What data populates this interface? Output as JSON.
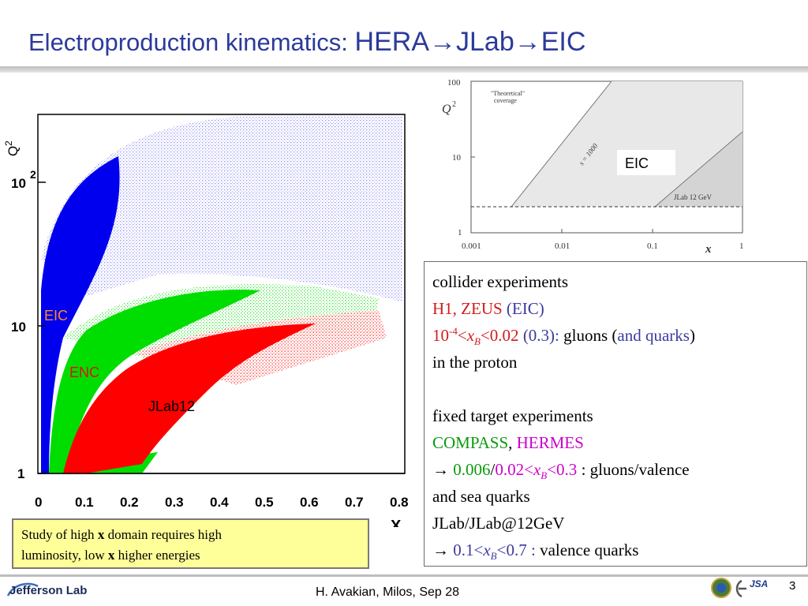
{
  "title": {
    "prefix": "Electroproduction kinematics: ",
    "main": "HERA→JLab→EIC"
  },
  "left_plot": {
    "y_axis_label": "Q",
    "y_axis_exp": "2",
    "x_axis_label": "X",
    "y_ticks": [
      {
        "base": "1",
        "exp": ""
      },
      {
        "base": "10",
        "exp": ""
      },
      {
        "base": "10",
        "exp": "2"
      }
    ],
    "x_ticks": [
      "0",
      "0.1",
      "0.2",
      "0.3",
      "0.4",
      "0.5",
      "0.6",
      "0.7",
      "0.8"
    ],
    "region_labels": {
      "eic": "EIC",
      "enc": "ENC",
      "jlab12": "JLab12"
    },
    "colors": {
      "eic": "#0000ee",
      "enc": "#00dd00",
      "jlab12": "#ff0000"
    }
  },
  "right_plot": {
    "y_label": "Q",
    "y_label_exp": "2",
    "x_label": "x",
    "y_ticks": [
      "100",
      "10",
      "1"
    ],
    "x_ticks": [
      "0.001",
      "0.01",
      "0.1",
      "1"
    ],
    "theory_label_1": "\"Theoretical\"",
    "theory_label_2": "coverage",
    "s_label": "s = 1000",
    "eic_label": "EIC",
    "jlab_label": "JLab 12 GeV"
  },
  "textbox": {
    "l1": "collider experiments",
    "l2_red": "H1, ZEUS ",
    "l2_blue": "(EIC)",
    "l3_a": "10",
    "l3_a_exp": "-4",
    "l3_b": "<",
    "l3_x": "x",
    "l3_xsub": "B",
    "l3_c": "<0.02 ",
    "l3_blue": "(0.3): ",
    "l3_d": "gluons (",
    "l3_blue2": "and quarks",
    "l3_e": ")",
    "l4": "in the proton",
    "l6": "fixed target experiments",
    "l7_green": "COMPASS",
    "l7_comma": ", ",
    "l7_mag": "HERMES",
    "l8_arrow": "→ ",
    "l8_green": "0.006",
    "l8_slash": "/",
    "l8_mag": "0.02",
    "l8_lt": "<",
    "l8_x": "x",
    "l8_xsub": "B",
    "l8_rest": "<0.3",
    "l8_tail": " : gluons/valence",
    "l9": "and sea quarks",
    "l10": "JLab/JLab@12GeV",
    "l11_arrow": "→ ",
    "l11_blue1": "0.1<",
    "l11_x": "x",
    "l11_xsub": "B",
    "l11_blue2": "<0.7 : ",
    "l11_rest": "valence quarks"
  },
  "note": {
    "a": "Study of high ",
    "b": "x",
    "c": " domain  requires high",
    "d": "luminosity, low ",
    "e": "x",
    "f": " higher energies"
  },
  "footer": {
    "text": "H. Avakian, Milos,  Sep 28",
    "page": "3",
    "logo_text": "Jefferson Lab",
    "jsa_text": "JSA"
  }
}
